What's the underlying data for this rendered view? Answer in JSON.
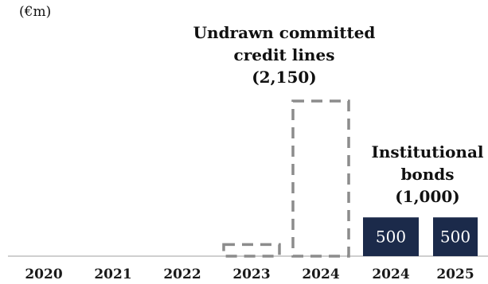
{
  "chart_data": {
    "type": "bar",
    "unit_label": "(€m)",
    "categories": [
      "2020",
      "2021",
      "2022",
      "2023",
      "2024",
      "2024",
      "2025"
    ],
    "series": [
      {
        "values": [
          0,
          0,
          0,
          150,
          2000,
          0,
          0
        ],
        "style": "dashed-outline"
      },
      {
        "values": [
          0,
          0,
          0,
          0,
          0,
          500,
          500
        ],
        "data_labels": [
          "",
          "",
          "",
          "",
          "",
          "500",
          "500"
        ],
        "style": "filled"
      }
    ],
    "annotations": [
      {
        "lines": [
          "Undrawn committed",
          "credit lines",
          "(2,150)"
        ],
        "anchor_category": 4
      },
      {
        "lines": [
          "Institutional",
          "bonds",
          "(1,000)"
        ],
        "anchor_category": 5.5
      }
    ],
    "colors": {
      "filled": "#1b2a4a",
      "dashed": "#8c8c8c",
      "axis": "#bfbfbf"
    },
    "grid": false,
    "legend": "none"
  }
}
